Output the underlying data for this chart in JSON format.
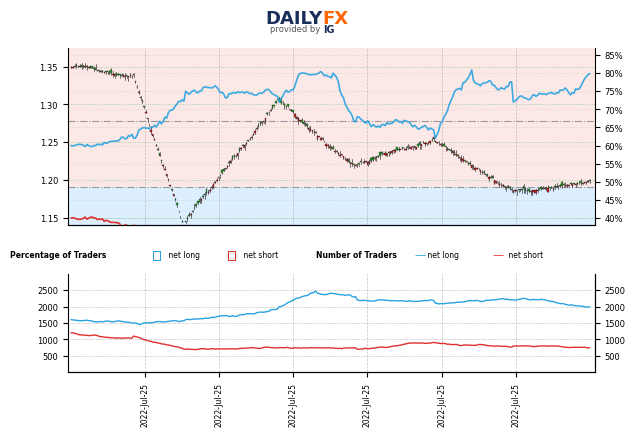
{
  "title_daily": "DAILYFX",
  "title_sub": "provided by IG",
  "top_chart": {
    "price_ylim": [
      1.14,
      1.375
    ],
    "pct_ylim": [
      38,
      87
    ],
    "price_ticks": [
      1.15,
      1.2,
      1.25,
      1.3,
      1.35
    ],
    "pct_ticks": [
      40,
      45,
      50,
      55,
      60,
      65,
      70,
      75,
      80,
      85
    ],
    "hline_dash1": 1.278,
    "hline_dash2": 1.191,
    "bg_pink_above": 1.191,
    "bg_blue_below": 1.191
  },
  "bottom_chart": {
    "ylim_left": [
      0,
      3000
    ],
    "ylim_right": [
      0,
      3000
    ],
    "yticks": [
      500,
      1000,
      1500,
      2000,
      2500
    ]
  },
  "colors": {
    "pink_bg": "#fde8e8",
    "blue_bg": "#ddeeff",
    "blue_line": "#29a3e0",
    "red_line": "#e03030",
    "green_candle": "#2a9a2a",
    "red_candle": "#cc2222",
    "black_candle": "#111111",
    "grid_green": "#88cc88",
    "grid_gray": "#aaaaaa",
    "dash_gray": "#999999"
  },
  "n_points": 300,
  "x_labels": [
    "2022-Jul-25",
    "2022-Jul-25",
    "2022-Jul-25",
    "2022-Jul-25",
    "2022-Jul-25",
    "2022-Jul-25"
  ]
}
